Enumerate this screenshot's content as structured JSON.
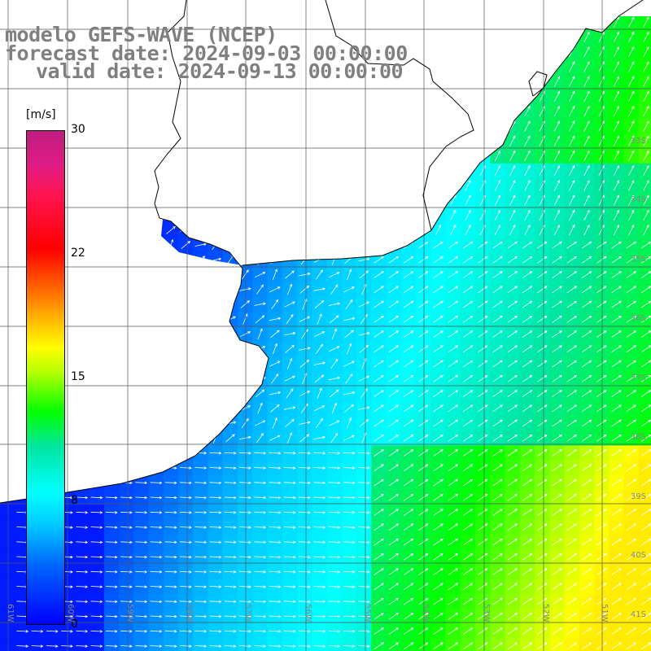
{
  "title": {
    "line1": "modelo GEFS-WAVE (NCEP)",
    "line2": "forecast date: 2024-09-03 00:00:00",
    "line3": "valid date: 2024-09-13 00:00:00"
  },
  "colorbar": {
    "unit": "[m/s]",
    "ticks": [
      "30",
      "22",
      "15",
      "8",
      "0"
    ]
  },
  "latitude_labels": [
    "33S",
    "34S",
    "35S",
    "36S",
    "37S",
    "38S",
    "39S",
    "40S",
    "41S"
  ],
  "longitude_labels": [
    "61W",
    "60W",
    "59W",
    "58W",
    "57W",
    "56W",
    "55W",
    "54W",
    "53W",
    "52W",
    "51W"
  ],
  "colors": {
    "title": "#7f7f7f",
    "land": "#ffffff",
    "coastline": "#000000",
    "grid": "#555555",
    "arrows": "#ffffff"
  }
}
